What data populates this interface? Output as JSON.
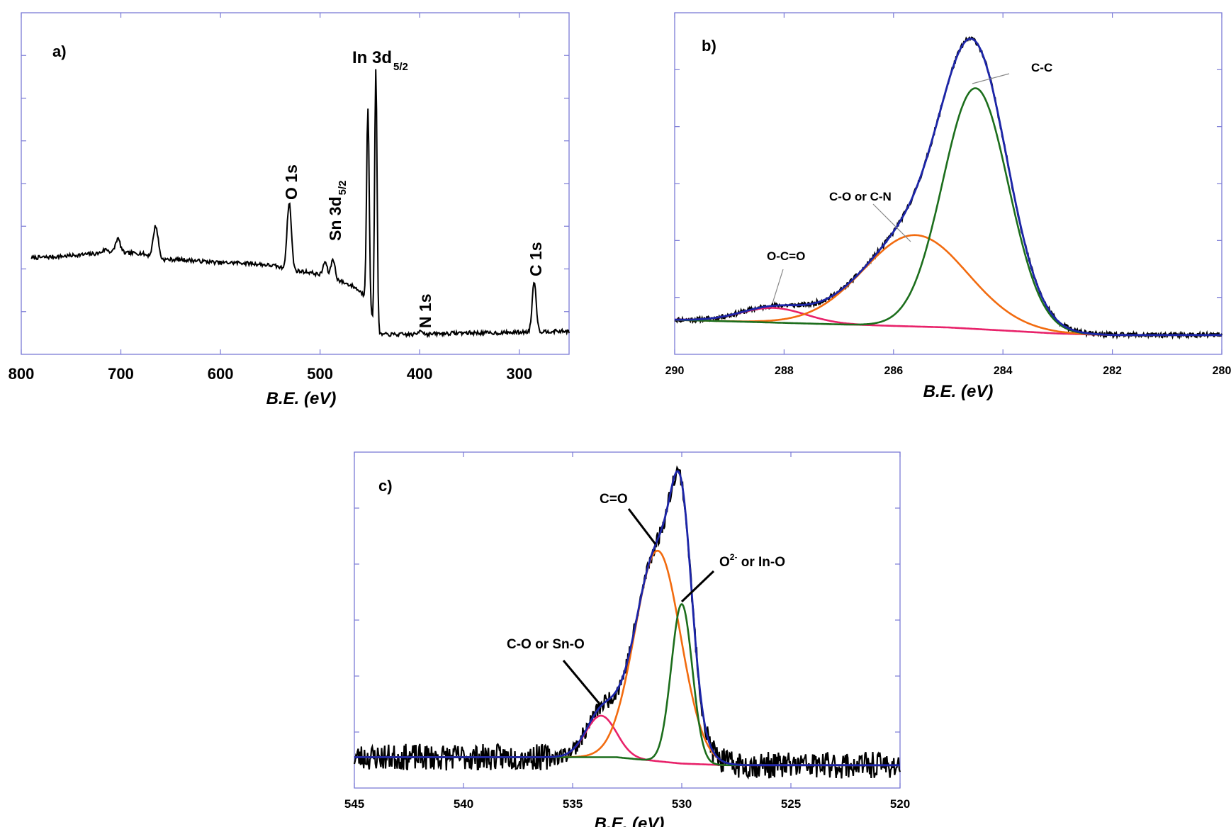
{
  "colors": {
    "frame": "#7b7bd6",
    "survey": "#000000",
    "envelope": "#1c25a8",
    "orange": "#f26b0f",
    "green": "#1c6e1c",
    "pink": "#e8226a",
    "leader_thin": "#888888",
    "leader_thick": "#000000"
  },
  "chart_data": [
    {
      "type": "line",
      "panel_label": "a)",
      "xlabel": "B.E. (eV)",
      "xlim": [
        800,
        250
      ],
      "x_ticks": [
        800,
        700,
        600,
        500,
        400,
        300
      ],
      "x_tick_labels": [
        "800",
        "700",
        "600",
        "500",
        "400",
        "300"
      ],
      "ylim": [
        0,
        100
      ],
      "series": [
        {
          "color": "#000000",
          "background": [
            [
              790,
              28
            ],
            [
              760,
              28.5
            ],
            [
              720,
              29.5
            ],
            [
              700,
              29.5
            ],
            [
              680,
              29.5
            ],
            [
              660,
              27.5
            ],
            [
              640,
              27.5
            ],
            [
              620,
              27
            ],
            [
              600,
              26.5
            ],
            [
              580,
              26.5
            ],
            [
              560,
              26
            ],
            [
              545,
              25.5
            ],
            [
              535,
              24.5
            ],
            [
              525,
              24
            ],
            [
              510,
              23.5
            ],
            [
              498,
              22.5
            ],
            [
              490,
              22
            ],
            [
              482,
              21
            ],
            [
              474,
              20
            ],
            [
              466,
              19
            ],
            [
              458,
              17
            ],
            [
              451,
              14
            ],
            [
              448,
              9
            ],
            [
              445,
              5
            ],
            [
              440,
              4
            ],
            [
              430,
              4
            ],
            [
              400,
              4
            ],
            [
              360,
              4.5
            ],
            [
              320,
              4.5
            ],
            [
              290,
              4.8
            ],
            [
              270,
              5
            ],
            [
              250,
              5
            ]
          ],
          "peaks": [
            [
              715,
              1.2,
              3
            ],
            [
              703,
              4.5,
              2.5
            ],
            [
              665,
              10,
              2.5
            ],
            [
              531,
              21,
              2.2
            ],
            [
              495,
              4.5,
              2
            ],
            [
              487,
              6,
              2
            ],
            [
              452,
              61,
              1.3
            ],
            [
              444,
              83,
              1.2
            ],
            [
              399,
              1.5,
              2
            ],
            [
              285,
              16,
              2
            ]
          ]
        }
      ],
      "annotations": [
        {
          "text": "O 1s",
          "rotated": true
        },
        {
          "text": "Sn 3d",
          "sub": "5/2",
          "rotated": true
        },
        {
          "text": "In 3d",
          "sub": "5/2",
          "rotated": false
        },
        {
          "text": "N 1s",
          "rotated": true
        },
        {
          "text": "C 1s",
          "rotated": true
        }
      ]
    },
    {
      "type": "line",
      "panel_label": "b)",
      "xlabel": "B.E. (eV)",
      "xlim": [
        290,
        280
      ],
      "x_ticks": [
        290,
        288,
        286,
        284,
        282,
        280
      ],
      "x_tick_labels": [
        "290",
        "288",
        "286",
        "284",
        "282",
        "280"
      ],
      "ylim": [
        0,
        100
      ],
      "baseline": [
        [
          290,
          9
        ],
        [
          285,
          6.5
        ],
        [
          283,
          4.5
        ],
        [
          282,
          4
        ],
        [
          280,
          4
        ]
      ],
      "components": [
        {
          "color": "#e8226a",
          "center": 288.2,
          "height": 4.8,
          "sigma": 0.6
        },
        {
          "color": "#f26b0f",
          "center": 285.6,
          "height": 30,
          "sigma": 0.95
        },
        {
          "color": "#1c6e1c",
          "center": 284.5,
          "height": 79,
          "sigma": 0.6
        }
      ],
      "envelope_color": "#1c25a8",
      "annotations": [
        {
          "text": "O-C=O",
          "peak_x": 288.1
        },
        {
          "text": "C-O or C-N",
          "peak_x": 285.7
        },
        {
          "text": "C-C",
          "peak_x": 284.4
        }
      ]
    },
    {
      "type": "line",
      "panel_label": "c)",
      "xlabel": "B.E. (eV)",
      "xlim": [
        545,
        520
      ],
      "x_ticks": [
        545,
        540,
        535,
        530,
        525,
        520
      ],
      "x_tick_labels": [
        "545",
        "540",
        "535",
        "530",
        "525",
        "520"
      ],
      "ylim": [
        0,
        100
      ],
      "baseline": [
        [
          545,
          7
        ],
        [
          533,
          7
        ],
        [
          530,
          5
        ],
        [
          528,
          4.5
        ],
        [
          520,
          4.5
        ]
      ],
      "components": [
        {
          "color": "#e8226a",
          "center": 533.7,
          "height": 13,
          "sigma": 0.7
        },
        {
          "color": "#f26b0f",
          "center": 531.1,
          "height": 66,
          "sigma": 1.05
        },
        {
          "color": "#1c6e1c",
          "center": 530.0,
          "height": 50,
          "sigma": 0.48
        }
      ],
      "envelope_color": "#1c25a8",
      "annotations": [
        {
          "text": "C-O or Sn-O",
          "peak_x": 533.9
        },
        {
          "text": "C=O",
          "peak_x": 531.2
        },
        {
          "text": "O",
          "sup": "2-",
          "rest": " or In-O",
          "peak_x": 530.1
        }
      ]
    }
  ]
}
